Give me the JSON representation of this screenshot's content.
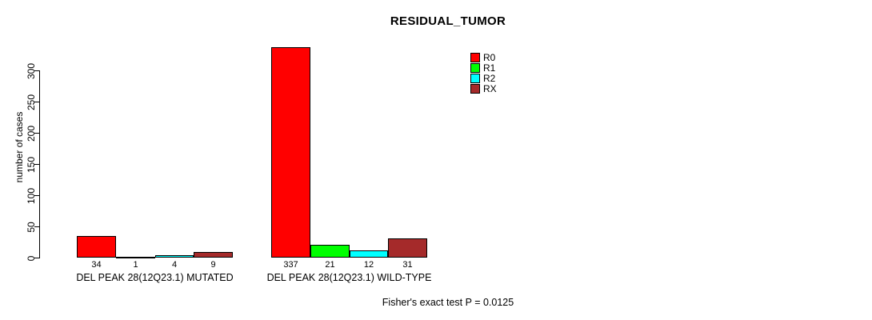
{
  "chart_data": {
    "type": "bar",
    "title": "RESIDUAL_TUMOR",
    "ylabel": "number of cases",
    "xlabel": "",
    "categories": [
      "DEL PEAK 28(12Q23.1) MUTATED",
      "DEL PEAK 28(12Q23.1) WILD-TYPE"
    ],
    "series": [
      {
        "name": "R0",
        "color": "#FF0000",
        "values": [
          34,
          337
        ]
      },
      {
        "name": "R1",
        "color": "#00FF00",
        "values": [
          1,
          21
        ]
      },
      {
        "name": "R2",
        "color": "#00FFFF",
        "values": [
          4,
          12
        ]
      },
      {
        "name": "RX",
        "color": "#A52A2A",
        "values": [
          9,
          31
        ]
      }
    ],
    "ylim": [
      0,
      300
    ],
    "yticks": [
      0,
      50,
      100,
      150,
      200,
      250,
      300
    ],
    "grid": false,
    "legend_position": "top-right",
    "bar_value_labels": true,
    "annotation": "Fisher's exact test P = 0.0125"
  }
}
